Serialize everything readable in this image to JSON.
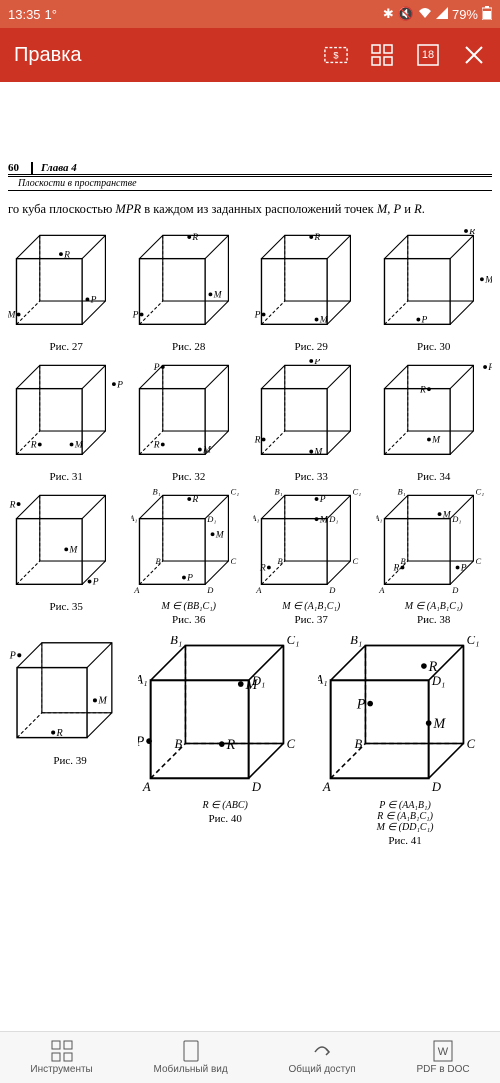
{
  "status": {
    "time": "13:35",
    "temp": "1°",
    "battery": "79%"
  },
  "appbar": {
    "title": "Правка",
    "page_badge": "18"
  },
  "doc": {
    "page_number": "60",
    "chapter_label": "Глава 4",
    "section_title": "Плоскости в пространстве",
    "problem_text": "го куба плоскостью MPR в каждом из заданных расположений точек M, P и R.",
    "figures": {
      "r1": [
        {
          "label": "Рис. 27",
          "pts": [
            [
              "R",
              45,
              25,
              "r"
            ],
            [
              "P",
              70,
              70,
              "r"
            ],
            [
              "M",
              5,
              85,
              "l"
            ]
          ]
        },
        {
          "label": "Рис. 28",
          "pts": [
            [
              "R",
              50,
              8,
              "r"
            ],
            [
              "M",
              70,
              65,
              "r"
            ],
            [
              "P",
              5,
              85,
              "l"
            ]
          ]
        },
        {
          "label": "Рис. 29",
          "pts": [
            [
              "R",
              50,
              8,
              "r"
            ],
            [
              "P",
              5,
              85,
              "l"
            ],
            [
              "M",
              55,
              90,
              "r"
            ]
          ]
        },
        {
          "label": "Рис. 30",
          "pts": [
            [
              "R",
              80,
              2,
              "r"
            ],
            [
              "M",
              95,
              50,
              "r"
            ],
            [
              "P",
              35,
              90,
              "r"
            ]
          ]
        }
      ],
      "r2": [
        {
          "label": "Рис. 31",
          "pts": [
            [
              "P",
              95,
              25,
              "r"
            ],
            [
              "M",
              55,
              85,
              "r"
            ],
            [
              "R",
              25,
              85,
              "l"
            ]
          ]
        },
        {
          "label": "Рис. 32",
          "pts": [
            [
              "P",
              25,
              8,
              "l"
            ],
            [
              "R",
              25,
              85,
              "l"
            ],
            [
              "M",
              60,
              90,
              "r"
            ]
          ]
        },
        {
          "label": "Рис. 33",
          "pts": [
            [
              "P",
              50,
              2,
              "r"
            ],
            [
              "R",
              5,
              80,
              "l"
            ],
            [
              "M",
              50,
              92,
              "r"
            ]
          ]
        },
        {
          "label": "Рис. 34",
          "pts": [
            [
              "P",
              98,
              8,
              "r"
            ],
            [
              "R",
              45,
              30,
              "l"
            ],
            [
              "M",
              45,
              80,
              "r"
            ]
          ]
        }
      ],
      "r3": [
        {
          "label": "Рис. 35",
          "pts": [
            [
              "R",
              5,
              15,
              "l"
            ],
            [
              "M",
              50,
              60,
              "r"
            ],
            [
              "P",
              72,
              92,
              "r"
            ]
          ],
          "note": ""
        },
        {
          "label": "Рис. 36",
          "labeled": true,
          "pts": [
            [
              "R",
              50,
              10,
              "r"
            ],
            [
              "M",
              72,
              45,
              "r"
            ],
            [
              "P",
              45,
              88,
              "r"
            ]
          ],
          "note": "M ∈ (BB₁C₁)"
        },
        {
          "label": "Рис. 37",
          "labeled": true,
          "pts": [
            [
              "P",
              55,
              10,
              "r"
            ],
            [
              "M",
              55,
              30,
              "r"
            ],
            [
              "R",
              10,
              78,
              "l"
            ]
          ],
          "note": "M ∈ (A₁B₁C₁)"
        },
        {
          "label": "Рис. 38",
          "labeled": true,
          "pts": [
            [
              "M",
              55,
              25,
              "r"
            ],
            [
              "R",
              20,
              78,
              "l"
            ],
            [
              "P",
              72,
              78,
              "r"
            ]
          ],
          "note": "M ∈ (A₁B₁C₁)"
        }
      ],
      "r4": [
        {
          "label": "Рис. 39",
          "pts": [
            [
              "P",
              5,
              18,
              "l"
            ],
            [
              "M",
              72,
              60,
              "r"
            ],
            [
              "R",
              35,
              90,
              "r"
            ]
          ],
          "note": ""
        },
        {
          "label": "Рис. 40",
          "labeled": true,
          "pts": [
            [
              "M",
              60,
              32,
              "r"
            ],
            [
              "P",
              2,
              70,
              "l"
            ],
            [
              "R",
              48,
              72,
              "r"
            ]
          ],
          "note": "R ∈ (ABC)"
        },
        {
          "label": "Рис. 41",
          "labeled": true,
          "pts": [
            [
              "R",
              62,
              20,
              "r"
            ],
            [
              "P",
              28,
              45,
              "l"
            ],
            [
              "M",
              65,
              58,
              "r"
            ]
          ],
          "note": "P ∈ (AA₁B₁)\nR ∈ (A₁B₁C₁)\nM ∈ (DD₁C₁)"
        }
      ]
    }
  },
  "bottomnav": {
    "tools": "Инструменты",
    "mobile": "Мобильный вид",
    "share": "Общий доступ",
    "pdf": "PDF в DOC"
  },
  "colors": {
    "statusbar": "#d85a3f",
    "appbar": "#cc3322",
    "stroke": "#000000"
  }
}
